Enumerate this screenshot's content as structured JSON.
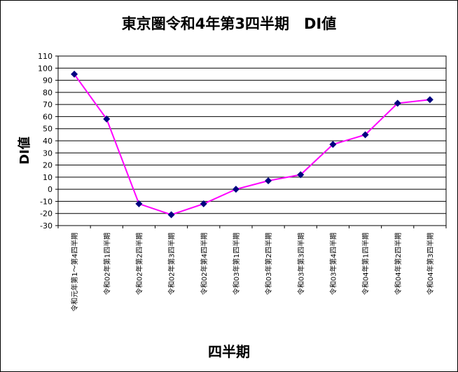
{
  "chart_data": {
    "type": "line",
    "title": "東京圏令和4年第3四半期　DI値",
    "xlabel": "四半期",
    "ylabel": "DI値",
    "ylim": [
      -30,
      110
    ],
    "ytick_step": 10,
    "grid": true,
    "line_color": "#ff00ff",
    "marker_color": "#000080",
    "categories": [
      "令和元年第1～第4四半期",
      "令和02年第1四半期",
      "令和02年第2四半期",
      "令和02年第3四半期",
      "令和02年第4四半期",
      "令和03年第1四半期",
      "令和03年第2四半期",
      "令和03年第3四半期",
      "令和03年第4四半期",
      "令和04年第1四半期",
      "令和04年第2四半期",
      "令和04年第3四半期"
    ],
    "values": [
      95,
      58,
      -12,
      -21,
      -12,
      0,
      7,
      12,
      37,
      45,
      71,
      74
    ]
  }
}
